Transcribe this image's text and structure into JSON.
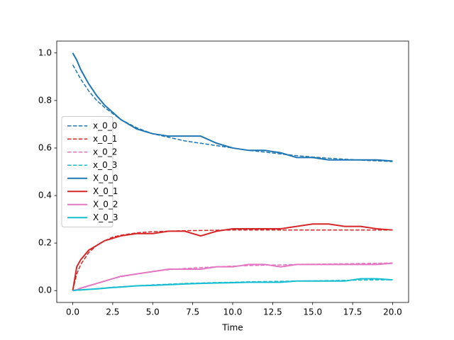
{
  "chart_data": {
    "type": "line",
    "xlabel": "Time",
    "x": [
      0,
      0.25,
      0.5,
      1,
      1.5,
      2,
      2.5,
      3,
      4,
      5,
      6,
      7,
      8,
      9,
      10,
      11,
      12,
      13,
      14,
      15,
      16,
      17,
      18,
      19,
      20
    ],
    "series": [
      {
        "name": "x_0_0",
        "color": "#1f77b4",
        "linestyle": "dashed",
        "values": [
          0.95,
          0.92,
          0.89,
          0.84,
          0.8,
          0.77,
          0.745,
          0.72,
          0.685,
          0.66,
          0.645,
          0.63,
          0.62,
          0.61,
          0.6,
          0.59,
          0.583,
          0.575,
          0.568,
          0.562,
          0.557,
          0.553,
          0.549,
          0.546,
          0.543
        ]
      },
      {
        "name": "x_0_1",
        "color": "#d62728",
        "linestyle": "dashed",
        "values": [
          0,
          0.07,
          0.11,
          0.16,
          0.19,
          0.21,
          0.225,
          0.233,
          0.243,
          0.248,
          0.25,
          0.252,
          0.253,
          0.254,
          0.255,
          0.255,
          0.255,
          0.255,
          0.255,
          0.255,
          0.255,
          0.255,
          0.255,
          0.255,
          0.255
        ]
      },
      {
        "name": "x_0_2",
        "color": "#e377c2",
        "linestyle": "dashed",
        "values": [
          0,
          0.005,
          0.01,
          0.02,
          0.03,
          0.04,
          0.05,
          0.058,
          0.07,
          0.08,
          0.088,
          0.093,
          0.097,
          0.1,
          0.103,
          0.105,
          0.107,
          0.108,
          0.11,
          0.111,
          0.112,
          0.113,
          0.114,
          0.115,
          0.116
        ]
      },
      {
        "name": "x_0_3",
        "color": "#17becf",
        "linestyle": "dashed",
        "values": [
          0,
          0.001,
          0.002,
          0.005,
          0.008,
          0.011,
          0.014,
          0.016,
          0.02,
          0.024,
          0.027,
          0.03,
          0.032,
          0.034,
          0.035,
          0.037,
          0.038,
          0.039,
          0.04,
          0.041,
          0.042,
          0.043,
          0.044,
          0.045,
          0.045
        ]
      },
      {
        "name": "X_0_0",
        "color": "#1f77b4",
        "linestyle": "solid",
        "values": [
          1.0,
          0.97,
          0.93,
          0.87,
          0.82,
          0.78,
          0.75,
          0.72,
          0.68,
          0.66,
          0.65,
          0.65,
          0.65,
          0.62,
          0.6,
          0.59,
          0.59,
          0.58,
          0.56,
          0.56,
          0.55,
          0.55,
          0.55,
          0.55,
          0.545
        ]
      },
      {
        "name": "X_0_1",
        "color": "#d62728",
        "linestyle": "solid",
        "values": [
          0,
          0.1,
          0.13,
          0.17,
          0.19,
          0.21,
          0.22,
          0.23,
          0.24,
          0.24,
          0.25,
          0.25,
          0.23,
          0.25,
          0.26,
          0.26,
          0.26,
          0.26,
          0.27,
          0.28,
          0.28,
          0.27,
          0.27,
          0.26,
          0.255
        ]
      },
      {
        "name": "X_0_2",
        "color": "#e377c2",
        "linestyle": "solid",
        "values": [
          0,
          0.003,
          0.01,
          0.02,
          0.03,
          0.04,
          0.05,
          0.06,
          0.07,
          0.08,
          0.09,
          0.09,
          0.09,
          0.1,
          0.1,
          0.11,
          0.11,
          0.1,
          0.11,
          0.11,
          0.11,
          0.11,
          0.11,
          0.11,
          0.115
        ]
      },
      {
        "name": "X_0_3",
        "color": "#17becf",
        "linestyle": "solid",
        "values": [
          0,
          0.002,
          0.003,
          0.005,
          0.007,
          0.01,
          0.013,
          0.015,
          0.02,
          0.022,
          0.025,
          0.028,
          0.03,
          0.032,
          0.033,
          0.035,
          0.035,
          0.035,
          0.04,
          0.04,
          0.04,
          0.04,
          0.05,
          0.05,
          0.045
        ]
      }
    ],
    "xlim": [
      -1,
      21
    ],
    "ylim": [
      -0.05,
      1.05
    ],
    "xticks": [
      {
        "value": 0,
        "label": "0.0"
      },
      {
        "value": 2.5,
        "label": "2.5"
      },
      {
        "value": 5,
        "label": "5.0"
      },
      {
        "value": 7.5,
        "label": "7.5"
      },
      {
        "value": 10,
        "label": "10.0"
      },
      {
        "value": 12.5,
        "label": "12.5"
      },
      {
        "value": 15,
        "label": "15.0"
      },
      {
        "value": 17.5,
        "label": "17.5"
      },
      {
        "value": 20,
        "label": "20.0"
      }
    ],
    "yticks": [
      {
        "value": 0,
        "label": "0.0"
      },
      {
        "value": 0.2,
        "label": "0.2"
      },
      {
        "value": 0.4,
        "label": "0.4"
      },
      {
        "value": 0.6,
        "label": "0.6"
      },
      {
        "value": 0.8,
        "label": "0.8"
      },
      {
        "value": 1,
        "label": "1.0"
      }
    ],
    "legend": "center left"
  }
}
